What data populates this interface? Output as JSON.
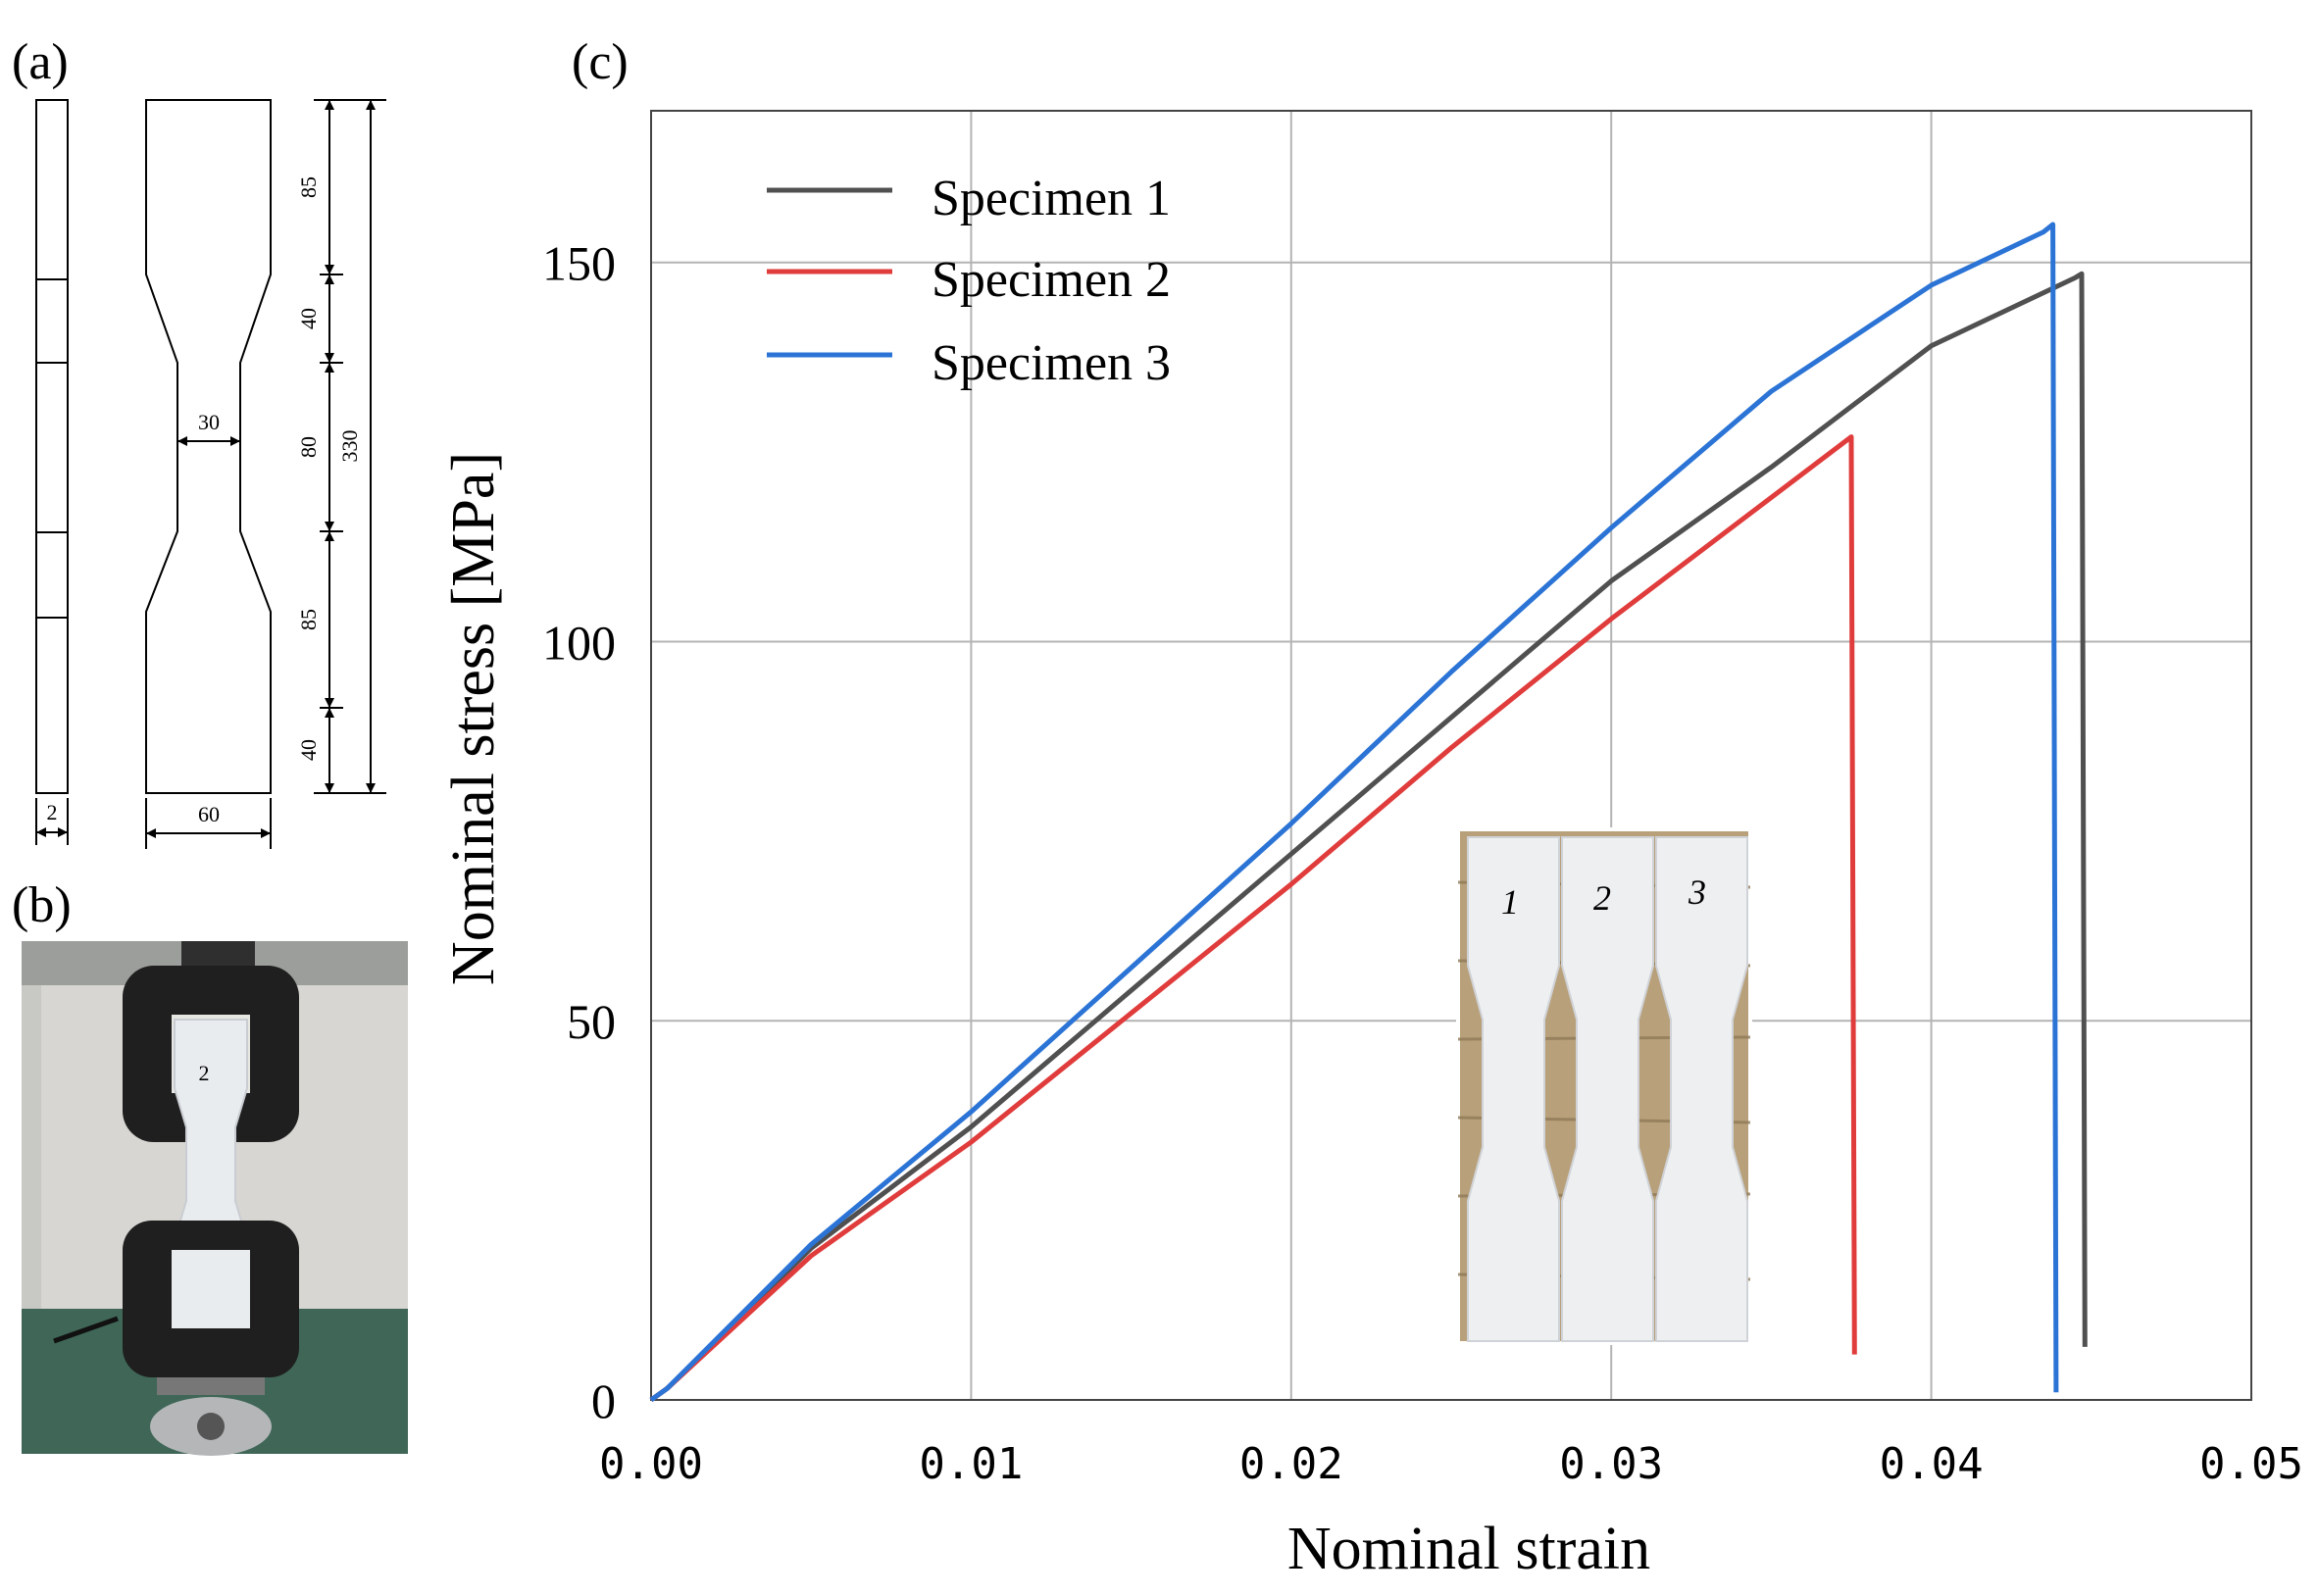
{
  "panels": {
    "a": {
      "label": "(a)"
    },
    "b": {
      "label": "(b)",
      "photo_tag": "2"
    },
    "c": {
      "label": "(c)"
    }
  },
  "drawing": {
    "dim_thickness": "2",
    "dim_width_end": "60",
    "dim_width_neck": "30",
    "dim_segments": [
      "85",
      "40",
      "80",
      "85",
      "40"
    ],
    "dim_total": "330"
  },
  "inset": {
    "specimen_labels": [
      "1",
      "2",
      "3"
    ]
  },
  "colors": {
    "specimen1": "#505050",
    "specimen2": "#e03c3c",
    "specimen3": "#2b74d6",
    "grid": "#b4b4b4"
  },
  "chart_data": {
    "type": "line",
    "title": "",
    "xlabel": "Nominal strain",
    "ylabel": "Nominal stress [MPa]",
    "xlim": [
      0,
      0.05
    ],
    "ylim": [
      0,
      170
    ],
    "xticks": [
      0,
      0.01,
      0.02,
      0.03,
      0.04,
      0.05
    ],
    "xtick_labels": [
      "0.00",
      "0.01",
      "0.02",
      "0.03",
      "0.04",
      "0.05"
    ],
    "yticks": [
      0,
      50,
      100,
      150
    ],
    "ytick_labels": [
      "0",
      "50",
      "100",
      "150"
    ],
    "grid": true,
    "legend_position": "top-left",
    "series": [
      {
        "name": "Specimen 1",
        "color": "#505050",
        "x": [
          0,
          0.0005,
          0.005,
          0.01,
          0.015,
          0.02,
          0.025,
          0.03,
          0.035,
          0.04,
          0.0445,
          0.0447,
          0.0448
        ],
        "y": [
          0,
          1.5,
          20,
          36,
          54,
          72,
          90,
          108,
          123,
          139,
          148,
          148.5,
          7
        ]
      },
      {
        "name": "Specimen 2",
        "color": "#e03c3c",
        "x": [
          0,
          0.0005,
          0.005,
          0.01,
          0.015,
          0.02,
          0.025,
          0.03,
          0.035,
          0.0375,
          0.0376
        ],
        "y": [
          0,
          1.5,
          19,
          34,
          51,
          68,
          86,
          103,
          119,
          127,
          6
        ]
      },
      {
        "name": "Specimen 3",
        "color": "#2b74d6",
        "x": [
          0,
          0.0005,
          0.005,
          0.01,
          0.015,
          0.02,
          0.025,
          0.03,
          0.035,
          0.04,
          0.0435,
          0.0438,
          0.0439
        ],
        "y": [
          0,
          1.5,
          20.5,
          38,
          57,
          76,
          96,
          115,
          133,
          147,
          154,
          155,
          1
        ]
      }
    ]
  }
}
